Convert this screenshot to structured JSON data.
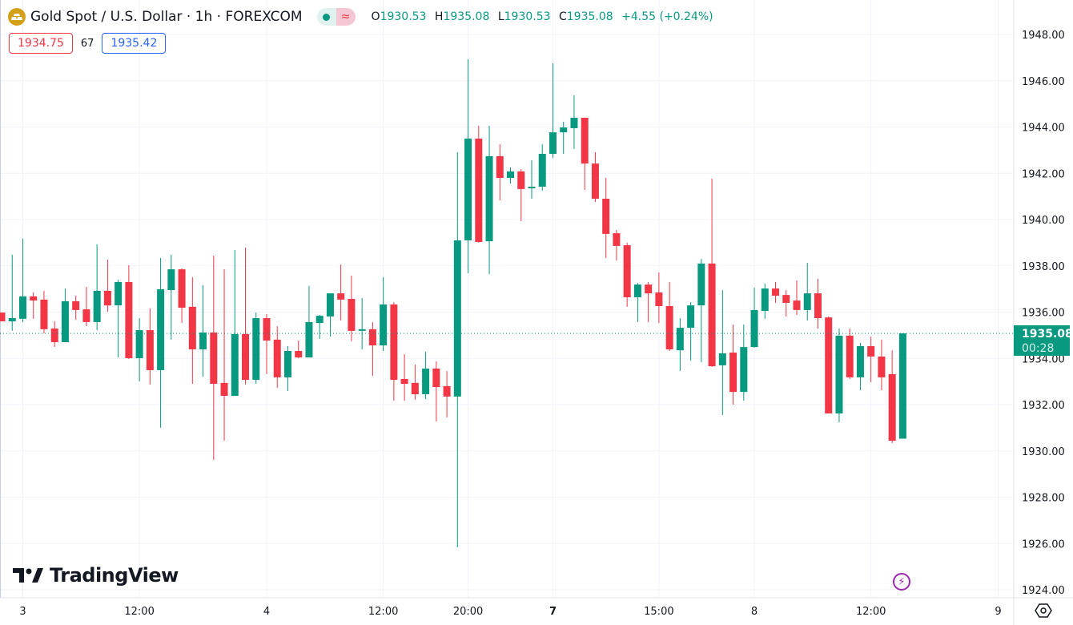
{
  "header": {
    "symbol_title": "Gold Spot / U.S. Dollar · 1h · FOREXCOM",
    "status_market_icon": "green-dot-icon",
    "status_delay_icon": "≈",
    "ohlc": {
      "o_label": "O",
      "o": "1930.53",
      "h_label": "H",
      "h": "1935.08",
      "l_label": "L",
      "l": "1930.53",
      "c_label": "C",
      "c": "1935.08",
      "change": "+4.55 (+0.24%)"
    },
    "bid": "1934.75",
    "spread": "67",
    "ask": "1935.42"
  },
  "last_price": {
    "price": "1935.08",
    "countdown": "00:28"
  },
  "branding": {
    "logo_text": "TradingView"
  },
  "icons": {
    "flash": "lightning-icon",
    "settings": "settings-hex-icon"
  },
  "colors": {
    "up": "#089981",
    "down": "#F23645",
    "grid": "#f0f3fa",
    "text": "#131722"
  },
  "chart_data": {
    "type": "candlestick",
    "title": "Gold Spot / U.S. Dollar · 1h · FOREXCOM",
    "ylim": [
      1923.6,
      1949.5
    ],
    "y_ticks": [
      "1948.00",
      "1946.00",
      "1944.00",
      "1942.00",
      "1940.00",
      "1938.00",
      "1936.00",
      "1934.00",
      "1932.00",
      "1930.00",
      "1928.00",
      "1926.00",
      "1924.00"
    ],
    "x_ticks": [
      {
        "label": "3",
        "index": 2
      },
      {
        "label": "12:00",
        "index": 13
      },
      {
        "label": "4",
        "index": 25
      },
      {
        "label": "12:00",
        "index": 36
      },
      {
        "label": "20:00",
        "index": 44
      },
      {
        "label": "7",
        "index": 52,
        "bold": true
      },
      {
        "label": "15:00",
        "index": 62
      },
      {
        "label": "8",
        "index": 71
      },
      {
        "label": "12:00",
        "index": 82
      },
      {
        "label": "9",
        "index": 94
      }
    ],
    "x_count": 96,
    "grid": true,
    "last_price": 1935.08,
    "ohlc": [
      [
        1935.98,
        1935.98,
        1935.6,
        1935.6
      ],
      [
        1935.6,
        1938.48,
        1935.19,
        1935.74
      ],
      [
        1935.71,
        1939.17,
        1935.57,
        1936.68
      ],
      [
        1936.68,
        1936.85,
        1935.71,
        1936.5
      ],
      [
        1936.54,
        1936.92,
        1935.08,
        1935.26
      ],
      [
        1935.29,
        1935.6,
        1934.49,
        1934.7
      ],
      [
        1934.7,
        1937.02,
        1934.7,
        1936.47
      ],
      [
        1936.47,
        1936.71,
        1935.67,
        1936.09
      ],
      [
        1936.12,
        1937.09,
        1935.39,
        1935.57
      ],
      [
        1935.57,
        1938.93,
        1935.22,
        1936.92
      ],
      [
        1936.92,
        1938.27,
        1936.02,
        1936.29
      ],
      [
        1936.29,
        1937.4,
        1934.04,
        1937.3
      ],
      [
        1937.3,
        1938.03,
        1933.97,
        1934.01
      ],
      [
        1934.01,
        1935.74,
        1933.0,
        1935.22
      ],
      [
        1935.22,
        1936.16,
        1932.87,
        1933.49
      ],
      [
        1933.49,
        1938.34,
        1931.0,
        1936.99
      ],
      [
        1936.95,
        1938.48,
        1934.81,
        1937.85
      ],
      [
        1937.85,
        1937.89,
        1935.53,
        1936.19
      ],
      [
        1936.23,
        1937.51,
        1932.9,
        1934.39
      ],
      [
        1934.39,
        1937.16,
        1933.21,
        1935.12
      ],
      [
        1935.12,
        1938.44,
        1929.61,
        1932.9
      ],
      [
        1932.94,
        1937.85,
        1930.44,
        1932.38
      ],
      [
        1932.38,
        1938.68,
        1932.38,
        1935.05
      ],
      [
        1935.05,
        1938.79,
        1932.87,
        1933.07
      ],
      [
        1933.07,
        1935.98,
        1932.9,
        1935.74
      ],
      [
        1935.74,
        1935.91,
        1933.32,
        1934.77
      ],
      [
        1934.81,
        1935.39,
        1932.73,
        1933.18
      ],
      [
        1933.18,
        1934.53,
        1932.59,
        1934.32
      ],
      [
        1934.32,
        1934.77,
        1934.01,
        1934.04
      ],
      [
        1934.04,
        1937.13,
        1934.04,
        1935.57
      ],
      [
        1935.53,
        1935.88,
        1934.84,
        1935.84
      ],
      [
        1935.81,
        1936.81,
        1934.94,
        1936.81
      ],
      [
        1936.81,
        1938.06,
        1935.64,
        1936.54
      ],
      [
        1936.57,
        1937.58,
        1934.74,
        1935.19
      ],
      [
        1935.19,
        1936.61,
        1934.39,
        1935.26
      ],
      [
        1935.26,
        1935.57,
        1933.25,
        1934.56
      ],
      [
        1934.56,
        1937.51,
        1934.32,
        1936.33
      ],
      [
        1936.33,
        1936.43,
        1932.17,
        1933.07
      ],
      [
        1933.11,
        1934.18,
        1932.17,
        1932.9
      ],
      [
        1932.94,
        1933.73,
        1932.21,
        1932.45
      ],
      [
        1932.45,
        1934.29,
        1932.24,
        1933.56
      ],
      [
        1933.56,
        1933.87,
        1931.27,
        1932.76
      ],
      [
        1932.8,
        1933.45,
        1931.45,
        1932.35
      ],
      [
        1932.35,
        1942.91,
        1925.84,
        1939.1
      ],
      [
        1939.1,
        1946.93,
        1937.68,
        1943.5
      ],
      [
        1943.5,
        1944.05,
        1939.0,
        1939.03
      ],
      [
        1939.06,
        1944.05,
        1937.64,
        1942.74
      ],
      [
        1942.74,
        1943.26,
        1940.83,
        1941.8
      ],
      [
        1941.8,
        1942.25,
        1941.56,
        1942.08
      ],
      [
        1942.08,
        1942.18,
        1939.93,
        1941.32
      ],
      [
        1941.35,
        1942.56,
        1940.9,
        1941.42
      ],
      [
        1941.42,
        1943.26,
        1941.25,
        1942.84
      ],
      [
        1942.84,
        1946.75,
        1942.67,
        1943.77
      ],
      [
        1943.77,
        1944.23,
        1942.84,
        1943.98
      ],
      [
        1943.95,
        1945.37,
        1943.05,
        1944.4
      ],
      [
        1944.4,
        1944.4,
        1941.28,
        1942.42
      ],
      [
        1942.42,
        1942.91,
        1940.76,
        1940.9
      ],
      [
        1940.9,
        1941.8,
        1938.34,
        1939.38
      ],
      [
        1939.41,
        1939.55,
        1938.23,
        1938.86
      ],
      [
        1938.89,
        1939.0,
        1936.23,
        1936.64
      ],
      [
        1936.64,
        1937.26,
        1935.57,
        1937.19
      ],
      [
        1937.19,
        1937.3,
        1935.57,
        1936.81
      ],
      [
        1936.85,
        1937.71,
        1935.53,
        1936.26
      ],
      [
        1936.26,
        1937.3,
        1934.32,
        1934.39
      ],
      [
        1934.35,
        1935.74,
        1933.45,
        1935.32
      ],
      [
        1935.32,
        1936.43,
        1933.9,
        1936.29
      ],
      [
        1936.29,
        1938.3,
        1933.84,
        1938.1
      ],
      [
        1938.1,
        1941.77,
        1933.63,
        1933.66
      ],
      [
        1933.7,
        1936.95,
        1931.55,
        1934.22
      ],
      [
        1934.25,
        1935.46,
        1932.0,
        1932.55
      ],
      [
        1932.55,
        1935.46,
        1932.17,
        1934.49
      ],
      [
        1934.49,
        1937.06,
        1934.46,
        1936.09
      ],
      [
        1936.05,
        1937.23,
        1935.71,
        1937.02
      ],
      [
        1937.02,
        1937.3,
        1936.4,
        1936.71
      ],
      [
        1936.74,
        1936.95,
        1935.81,
        1936.4
      ],
      [
        1936.5,
        1937.37,
        1935.88,
        1936.09
      ],
      [
        1936.09,
        1938.13,
        1935.64,
        1936.81
      ],
      [
        1936.81,
        1937.44,
        1935.29,
        1935.74
      ],
      [
        1935.77,
        1935.81,
        1931.62,
        1931.62
      ],
      [
        1931.62,
        1935.29,
        1931.24,
        1934.98
      ],
      [
        1934.98,
        1935.29,
        1933.11,
        1933.18
      ],
      [
        1933.18,
        1934.67,
        1932.62,
        1934.53
      ],
      [
        1934.53,
        1934.94,
        1932.97,
        1934.08
      ],
      [
        1934.08,
        1934.81,
        1932.62,
        1933.18
      ],
      [
        1933.32,
        1934.35,
        1930.34,
        1930.44
      ],
      [
        1930.53,
        1935.08,
        1930.53,
        1935.08
      ]
    ]
  }
}
